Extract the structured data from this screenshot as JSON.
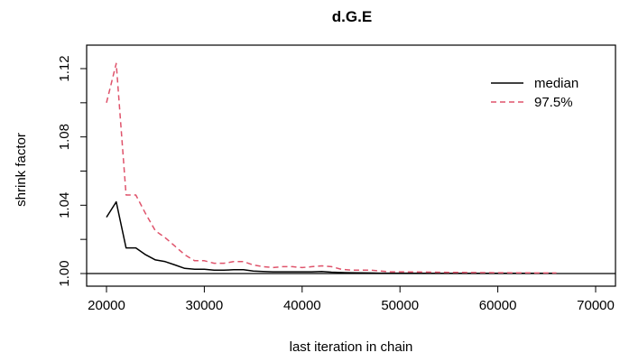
{
  "chart_data": {
    "type": "line",
    "title": "d.G.E",
    "xlabel": "last iteration in chain",
    "ylabel": "shrink factor",
    "xlim": [
      20000,
      70000
    ],
    "ylim": [
      1.0,
      1.12
    ],
    "xticks": [
      20000,
      30000,
      40000,
      50000,
      60000,
      70000
    ],
    "yticks": [
      "1.00",
      "1.04",
      "1.08",
      "1.12"
    ],
    "grid": false,
    "legend_position": "top-right",
    "reference_line": 1.0,
    "series": [
      {
        "name": "median",
        "color": "#000000",
        "dash": "solid",
        "x": [
          20000,
          21000,
          22000,
          23000,
          24000,
          25000,
          26000,
          27000,
          28000,
          29000,
          30000,
          31000,
          32000,
          33000,
          34000,
          35000,
          36000,
          37000,
          38000,
          39000,
          40000,
          41000,
          42000,
          43000,
          44000,
          45000,
          46000,
          47000,
          48000,
          50000,
          55000,
          60000,
          65000,
          66000
        ],
        "values": [
          1.033,
          1.042,
          1.015,
          1.015,
          1.011,
          1.008,
          1.007,
          1.005,
          1.003,
          1.0025,
          1.0025,
          1.002,
          1.002,
          1.0022,
          1.0022,
          1.0015,
          1.0012,
          1.001,
          1.001,
          1.001,
          1.001,
          1.001,
          1.0012,
          1.0008,
          1.0006,
          1.0005,
          1.0004,
          1.0003,
          1.0002,
          1.0002,
          1.0001,
          1.0001,
          1.0001,
          1.0001
        ]
      },
      {
        "name": "97.5%",
        "color": "#df536b",
        "dash": "dashed",
        "x": [
          20000,
          21000,
          22000,
          23000,
          24000,
          25000,
          26000,
          27000,
          28000,
          29000,
          30000,
          31000,
          32000,
          33000,
          34000,
          35000,
          36000,
          37000,
          38000,
          39000,
          40000,
          41000,
          42000,
          43000,
          44000,
          45000,
          46000,
          47000,
          48000,
          49000,
          50000,
          55000,
          60000,
          65000,
          66000
        ],
        "values": [
          1.1,
          1.123,
          1.046,
          1.046,
          1.035,
          1.025,
          1.021,
          1.016,
          1.011,
          1.0075,
          1.0075,
          1.006,
          1.006,
          1.007,
          1.007,
          1.005,
          1.004,
          1.0035,
          1.004,
          1.004,
          1.0035,
          1.004,
          1.0045,
          1.004,
          1.0025,
          1.002,
          1.002,
          1.002,
          1.0015,
          1.001,
          1.001,
          1.0007,
          1.0005,
          1.0003,
          1.0003
        ]
      }
    ]
  }
}
